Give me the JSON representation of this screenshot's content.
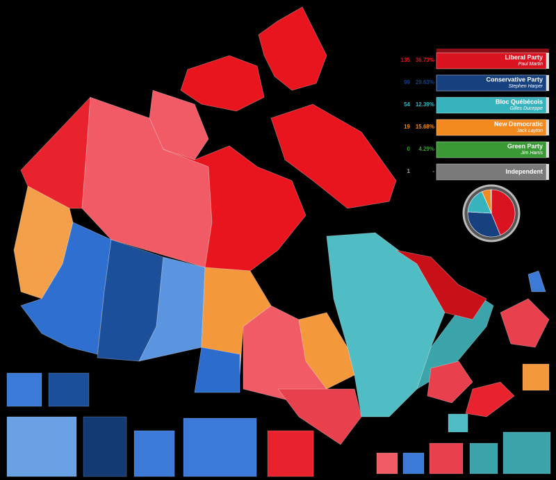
{
  "parties": [
    {
      "seats": 135,
      "vote_share": "36.73%",
      "name": "Liberal Party",
      "leader": "Paul Martin",
      "color": "#d9131f"
    },
    {
      "seats": 99,
      "vote_share": "29.63%",
      "name": "Conservative Party",
      "leader": "Stephen Harper",
      "color": "#17407f"
    },
    {
      "seats": 54,
      "vote_share": "12.39%",
      "name": "Bloc Québécois",
      "leader": "Gilles Duceppe",
      "color": "#36b3bd"
    },
    {
      "seats": 19,
      "vote_share": "15.68%",
      "name": "New Democratic",
      "leader": "Jack Layton",
      "color": "#f38a20"
    },
    {
      "seats": 0,
      "vote_share": "4.29%",
      "name": "Green Party",
      "leader": "Jim Harris",
      "color": "#3a9935"
    },
    {
      "seats": 1,
      "vote_share": "-",
      "name": "Independent",
      "color": "#7a7a7a"
    }
  ]
}
